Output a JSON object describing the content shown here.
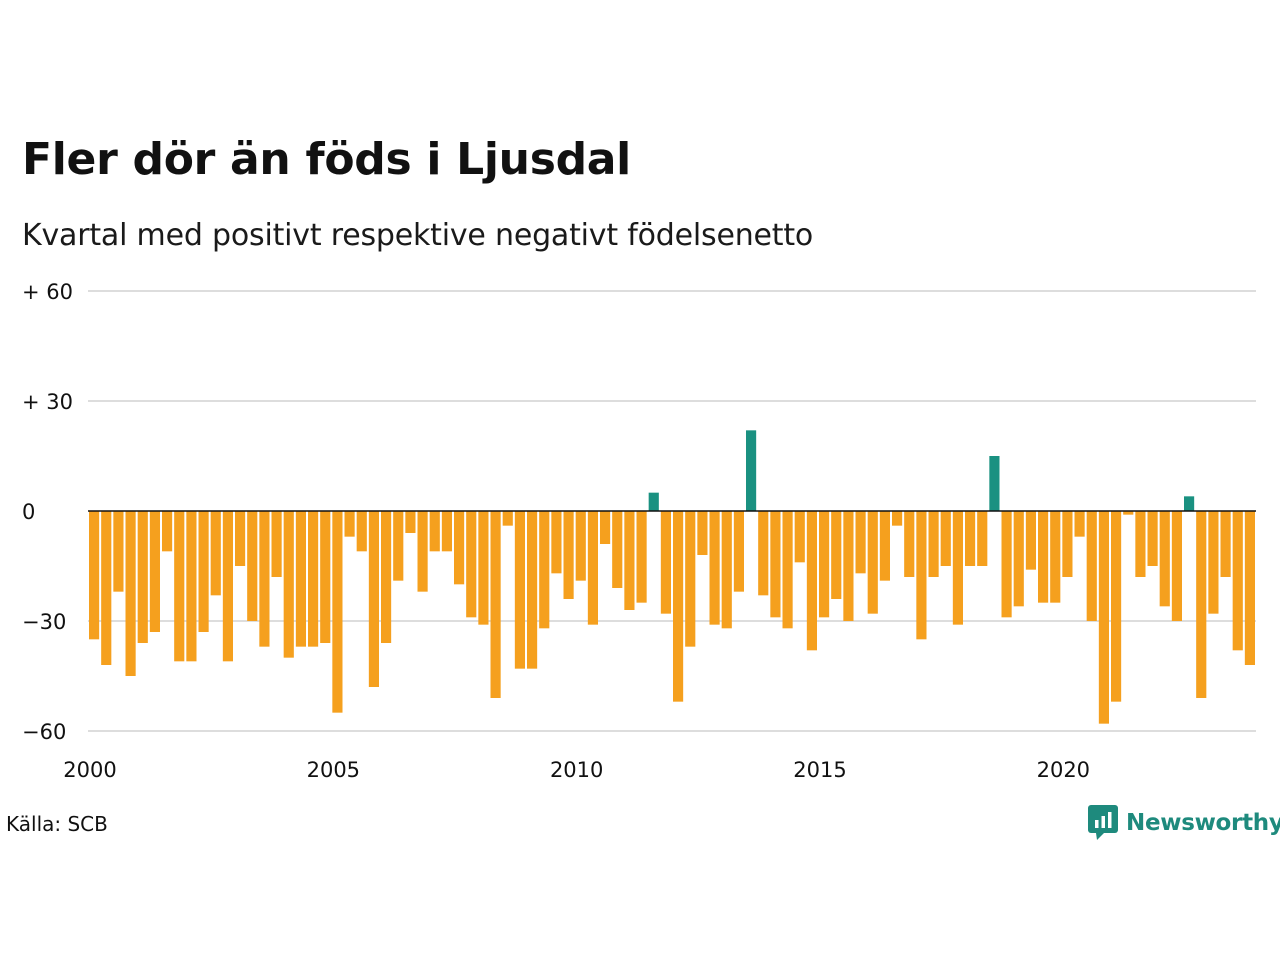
{
  "header": {
    "title": "Fler dör än föds i Ljusdal",
    "subtitle": "Kvartal med positivt respektive negativt födelsenetto"
  },
  "footer": {
    "source": "Källa: SCB",
    "brand": "Newsworthy"
  },
  "colors": {
    "negative": "#f5a01e",
    "positive": "#1a9181",
    "grid": "#dddddd",
    "zero_line": "#111111",
    "brand": "#1e8a7d"
  },
  "icons": {
    "brand_logo": "newsworthy-logo-icon"
  },
  "chart_data": {
    "type": "bar",
    "x_start": "2000 Q1",
    "x_end": "2023 Q4",
    "ylim": [
      -60,
      60
    ],
    "yticks": [
      {
        "value": 60,
        "label": "+ 60"
      },
      {
        "value": 30,
        "label": "+ 30"
      },
      {
        "value": 0,
        "label": "0"
      },
      {
        "value": -30,
        "label": "−30"
      },
      {
        "value": -60,
        "label": "−60"
      }
    ],
    "xticks": [
      {
        "year": 2000,
        "label": "2000"
      },
      {
        "year": 2005,
        "label": "2005"
      },
      {
        "year": 2010,
        "label": "2010"
      },
      {
        "year": 2015,
        "label": "2015"
      },
      {
        "year": 2020,
        "label": "2020"
      }
    ],
    "grid": true,
    "legend": "none",
    "values": [
      -35,
      -42,
      -22,
      -45,
      -36,
      -33,
      -11,
      -41,
      -41,
      -33,
      -23,
      -41,
      -15,
      -30,
      -37,
      -18,
      -40,
      -37,
      -37,
      -36,
      -55,
      -7,
      -11,
      -48,
      -36,
      -19,
      -6,
      -22,
      -11,
      -11,
      -20,
      -29,
      -31,
      -51,
      -4,
      -43,
      -43,
      -32,
      -17,
      -24,
      -19,
      -31,
      -9,
      -21,
      -27,
      -25,
      5,
      -28,
      -52,
      -37,
      -12,
      -31,
      -32,
      -22,
      22,
      -23,
      -29,
      -32,
      -14,
      -38,
      -29,
      -24,
      -30,
      -17,
      -28,
      -19,
      -4,
      -18,
      -35,
      -18,
      -15,
      -31,
      -15,
      -15,
      15,
      -29,
      -26,
      -16,
      -25,
      -25,
      -18,
      -7,
      -30,
      -58,
      -52,
      -1,
      -18,
      -15,
      -26,
      -30,
      4,
      -51,
      -28,
      -18,
      -38,
      -42
    ]
  }
}
